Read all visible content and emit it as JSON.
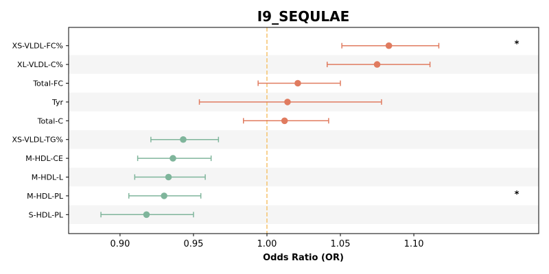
{
  "chart_data": {
    "type": "forest",
    "title": "I9_SEQULAE",
    "xlabel": "Odds Ratio (OR)",
    "xlim": [
      0.865,
      1.185
    ],
    "xticks": [
      0.9,
      0.95,
      1.0,
      1.05,
      1.1
    ],
    "xtick_labels": [
      "0.90",
      "0.95",
      "1.00",
      "1.05",
      "1.10"
    ],
    "reference_line": 1.0,
    "significance_marker": "*",
    "colors": {
      "positive": "#E07B5F",
      "negative": "#7FB59B",
      "reference": "#F5C26B",
      "band": "#F5F5F5"
    },
    "rows": [
      {
        "label": "XS-VLDL-FC%",
        "or": 1.083,
        "lower": 1.051,
        "upper": 1.117,
        "significant": true
      },
      {
        "label": "XL-VLDL-C%",
        "or": 1.075,
        "lower": 1.041,
        "upper": 1.111,
        "significant": false
      },
      {
        "label": "Total-FC",
        "or": 1.021,
        "lower": 0.994,
        "upper": 1.05,
        "significant": false
      },
      {
        "label": "Tyr",
        "or": 1.014,
        "lower": 0.954,
        "upper": 1.078,
        "significant": false
      },
      {
        "label": "Total-C",
        "or": 1.012,
        "lower": 0.984,
        "upper": 1.042,
        "significant": false
      },
      {
        "label": "XS-VLDL-TG%",
        "or": 0.943,
        "lower": 0.921,
        "upper": 0.967,
        "significant": false
      },
      {
        "label": "M-HDL-CE",
        "or": 0.936,
        "lower": 0.912,
        "upper": 0.962,
        "significant": false
      },
      {
        "label": "M-HDL-L",
        "or": 0.933,
        "lower": 0.91,
        "upper": 0.958,
        "significant": false
      },
      {
        "label": "M-HDL-PL",
        "or": 0.93,
        "lower": 0.906,
        "upper": 0.955,
        "significant": true
      },
      {
        "label": "S-HDL-PL",
        "or": 0.918,
        "lower": 0.887,
        "upper": 0.95,
        "significant": false
      }
    ]
  }
}
